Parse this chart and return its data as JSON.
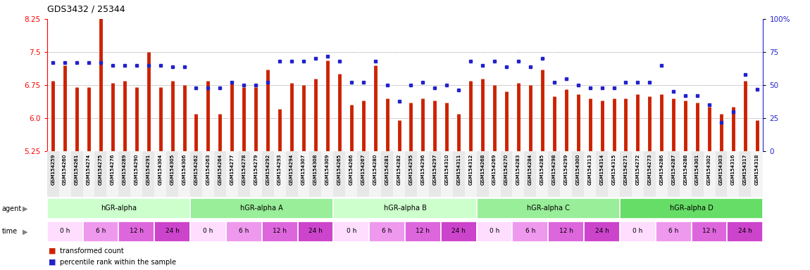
{
  "title": "GDS3432 / 25344",
  "samples": [
    "GSM154259",
    "GSM154260",
    "GSM154261",
    "GSM154274",
    "GSM154275",
    "GSM154276",
    "GSM154289",
    "GSM154290",
    "GSM154291",
    "GSM154304",
    "GSM154305",
    "GSM154306",
    "GSM154262",
    "GSM154263",
    "GSM154264",
    "GSM154277",
    "GSM154278",
    "GSM154279",
    "GSM154292",
    "GSM154293",
    "GSM154294",
    "GSM154307",
    "GSM154308",
    "GSM154309",
    "GSM154265",
    "GSM154266",
    "GSM154267",
    "GSM154280",
    "GSM154281",
    "GSM154282",
    "GSM154295",
    "GSM154296",
    "GSM154297",
    "GSM154310",
    "GSM154311",
    "GSM154312",
    "GSM154268",
    "GSM154269",
    "GSM154270",
    "GSM154283",
    "GSM154284",
    "GSM154285",
    "GSM154298",
    "GSM154299",
    "GSM154300",
    "GSM154313",
    "GSM154314",
    "GSM154315",
    "GSM154271",
    "GSM154272",
    "GSM154273",
    "GSM154286",
    "GSM154287",
    "GSM154288",
    "GSM154301",
    "GSM154302",
    "GSM154303",
    "GSM154316",
    "GSM154317",
    "GSM154318"
  ],
  "bar_values": [
    6.85,
    7.2,
    6.7,
    6.7,
    8.6,
    6.8,
    6.85,
    6.7,
    7.5,
    6.7,
    6.85,
    6.75,
    6.1,
    6.85,
    6.1,
    6.85,
    6.7,
    6.7,
    7.1,
    6.2,
    6.8,
    6.75,
    6.9,
    7.3,
    7.0,
    6.3,
    6.4,
    7.2,
    6.45,
    5.95,
    6.35,
    6.45,
    6.4,
    6.35,
    6.1,
    6.85,
    6.9,
    6.75,
    6.6,
    6.8,
    6.75,
    7.1,
    6.5,
    6.65,
    6.55,
    6.45,
    6.4,
    6.45,
    6.45,
    6.55,
    6.5,
    6.55,
    6.45,
    6.4,
    6.35,
    6.25,
    6.1,
    6.25,
    6.85,
    5.95
  ],
  "percentile_values": [
    67,
    67,
    67,
    67,
    67,
    65,
    65,
    65,
    65,
    65,
    64,
    64,
    48,
    48,
    48,
    52,
    50,
    50,
    52,
    68,
    68,
    68,
    70,
    72,
    68,
    52,
    52,
    68,
    50,
    38,
    50,
    52,
    48,
    50,
    46,
    68,
    65,
    68,
    64,
    68,
    64,
    70,
    52,
    55,
    50,
    48,
    48,
    48,
    52,
    52,
    52,
    65,
    45,
    42,
    42,
    35,
    22,
    30,
    58,
    47
  ],
  "agents": [
    {
      "label": "hGR-alpha",
      "start": 0,
      "end": 12,
      "color": "#ccffcc"
    },
    {
      "label": "hGR-alpha A",
      "start": 12,
      "end": 24,
      "color": "#99ee99"
    },
    {
      "label": "hGR-alpha B",
      "start": 24,
      "end": 36,
      "color": "#ccffcc"
    },
    {
      "label": "hGR-alpha C",
      "start": 36,
      "end": 48,
      "color": "#99ee99"
    },
    {
      "label": "hGR-alpha D",
      "start": 48,
      "end": 60,
      "color": "#66dd66"
    }
  ],
  "time_groups": [
    {
      "label": "0 h",
      "start": 0,
      "end": 3,
      "color": "#ffddff"
    },
    {
      "label": "6 h",
      "start": 3,
      "end": 6,
      "color": "#ee99ee"
    },
    {
      "label": "12 h",
      "start": 6,
      "end": 9,
      "color": "#dd66dd"
    },
    {
      "label": "24 h",
      "start": 9,
      "end": 12,
      "color": "#cc44cc"
    },
    {
      "label": "0 h",
      "start": 12,
      "end": 15,
      "color": "#ffddff"
    },
    {
      "label": "6 h",
      "start": 15,
      "end": 18,
      "color": "#ee99ee"
    },
    {
      "label": "12 h",
      "start": 18,
      "end": 21,
      "color": "#dd66dd"
    },
    {
      "label": "24 h",
      "start": 21,
      "end": 24,
      "color": "#cc44cc"
    },
    {
      "label": "0 h",
      "start": 24,
      "end": 27,
      "color": "#ffddff"
    },
    {
      "label": "6 h",
      "start": 27,
      "end": 30,
      "color": "#ee99ee"
    },
    {
      "label": "12 h",
      "start": 30,
      "end": 33,
      "color": "#dd66dd"
    },
    {
      "label": "24 h",
      "start": 33,
      "end": 36,
      "color": "#cc44cc"
    },
    {
      "label": "0 h",
      "start": 36,
      "end": 39,
      "color": "#ffddff"
    },
    {
      "label": "6 h",
      "start": 39,
      "end": 42,
      "color": "#ee99ee"
    },
    {
      "label": "12 h",
      "start": 42,
      "end": 45,
      "color": "#dd66dd"
    },
    {
      "label": "24 h",
      "start": 45,
      "end": 48,
      "color": "#cc44cc"
    },
    {
      "label": "0 h",
      "start": 48,
      "end": 51,
      "color": "#ffddff"
    },
    {
      "label": "6 h",
      "start": 51,
      "end": 54,
      "color": "#ee99ee"
    },
    {
      "label": "12 h",
      "start": 54,
      "end": 57,
      "color": "#dd66dd"
    },
    {
      "label": "24 h",
      "start": 57,
      "end": 60,
      "color": "#cc44cc"
    }
  ],
  "ylim_left": [
    5.25,
    8.25
  ],
  "ylim_right": [
    0,
    100
  ],
  "yticks_left": [
    5.25,
    6.0,
    6.75,
    7.5,
    8.25
  ],
  "yticks_right": [
    0,
    25,
    50,
    75,
    100
  ],
  "yticklabels_right": [
    "0",
    "25",
    "50",
    "75",
    "100%"
  ],
  "bar_color": "#cc2200",
  "dot_color": "#2222cc",
  "bg_color": "#ffffff",
  "grid_color": "#555555",
  "label_agent": "agent",
  "label_time": "time",
  "legend_bar": "transformed count",
  "legend_dot": "percentile rank within the sample"
}
